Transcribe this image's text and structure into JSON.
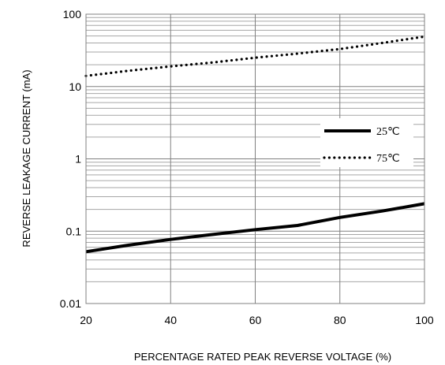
{
  "chart_data": {
    "type": "line",
    "title": "",
    "xlabel": "PERCENTAGE RATED PEAK REVERSE VOLTAGE (%)",
    "ylabel": "REVERSE LEAKAGE CURRENT (mA)",
    "xlim": [
      20,
      100
    ],
    "ylim": [
      0.01,
      100
    ],
    "yscale": "log",
    "grid": true,
    "legend_position": "right",
    "x_ticks": [
      20,
      40,
      60,
      80,
      100
    ],
    "x_tick_labels": [
      "20",
      "40",
      "60",
      "80",
      "100"
    ],
    "y_ticks": [
      0.01,
      0.1,
      1,
      10,
      100
    ],
    "y_tick_labels": [
      "0.01",
      "0.1",
      "1",
      "10",
      "100"
    ],
    "series": [
      {
        "name": "25℃",
        "style": "solid",
        "color": "#000000",
        "x": [
          20,
          30,
          40,
          50,
          60,
          70,
          80,
          90,
          100
        ],
        "y": [
          0.052,
          0.064,
          0.077,
          0.09,
          0.105,
          0.12,
          0.155,
          0.19,
          0.24
        ]
      },
      {
        "name": "75℃",
        "style": "dotted",
        "color": "#000000",
        "x": [
          20,
          30,
          40,
          50,
          60,
          70,
          80,
          90,
          100
        ],
        "y": [
          14,
          16.5,
          19,
          21.5,
          25,
          28.5,
          33,
          40,
          49
        ]
      }
    ]
  }
}
